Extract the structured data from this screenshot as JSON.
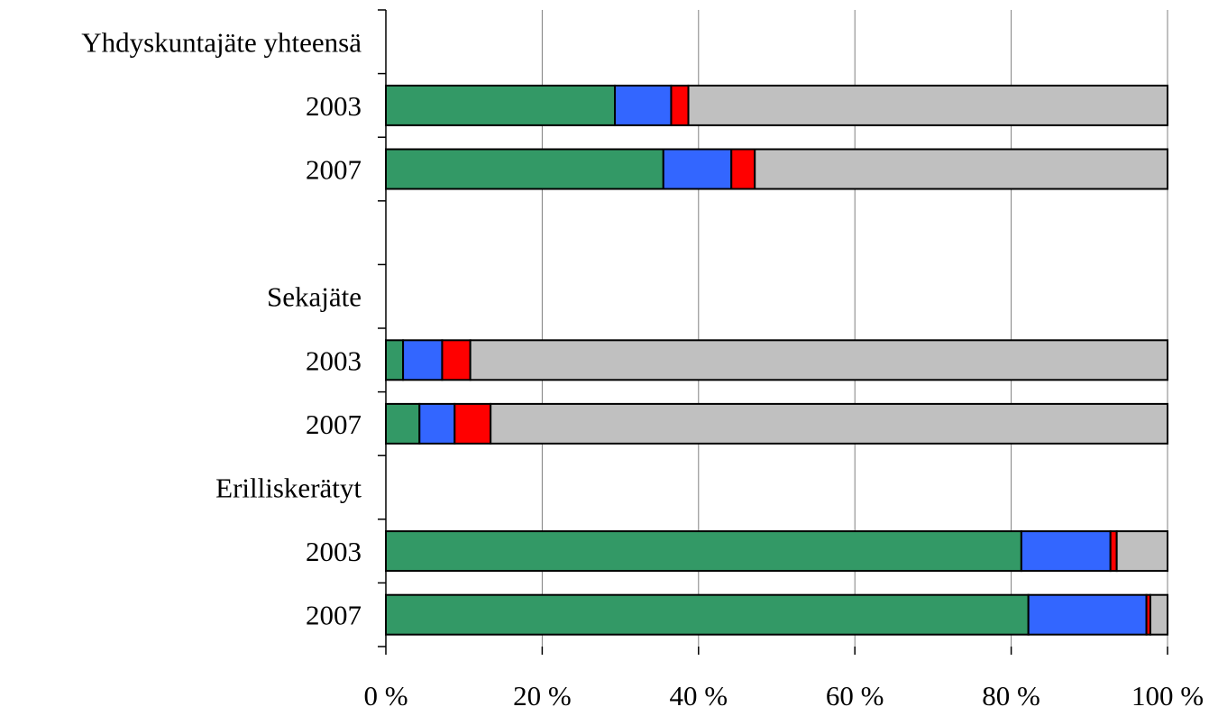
{
  "chart_data": {
    "type": "bar",
    "orientation": "horizontal",
    "stacked": "percent",
    "title": "",
    "xlabel": "",
    "ylabel": "",
    "xlim": [
      0,
      100
    ],
    "x_ticks": [
      "0 %",
      "20 %",
      "40 %",
      "60 %",
      "80 %",
      "100 %"
    ],
    "grid": "vertical",
    "legend": "none",
    "rows": [
      {
        "label": "Yhdyskuntajäte yhteensä",
        "values": null
      },
      {
        "label": "2003",
        "values": [
          29.3,
          7.2,
          2.2,
          61.3
        ]
      },
      {
        "label": "2007",
        "values": [
          35.5,
          8.7,
          3.0,
          52.8
        ]
      },
      {
        "label": "",
        "values": null
      },
      {
        "label": "Sekajäte",
        "values": null
      },
      {
        "label": "2003",
        "values": [
          2.2,
          5.0,
          3.6,
          89.2
        ]
      },
      {
        "label": "2007",
        "values": [
          4.3,
          4.5,
          4.6,
          86.6
        ]
      },
      {
        "label": "Erilliskerätyt",
        "values": null
      },
      {
        "label": "2003",
        "values": [
          81.3,
          11.4,
          0.8,
          6.5
        ]
      },
      {
        "label": "2007",
        "values": [
          82.2,
          15.1,
          0.5,
          2.2
        ]
      }
    ],
    "series": [
      {
        "color": "#339966"
      },
      {
        "color": "#3366ff"
      },
      {
        "color": "#ff0000"
      },
      {
        "color": "#c0c0c0"
      }
    ]
  }
}
